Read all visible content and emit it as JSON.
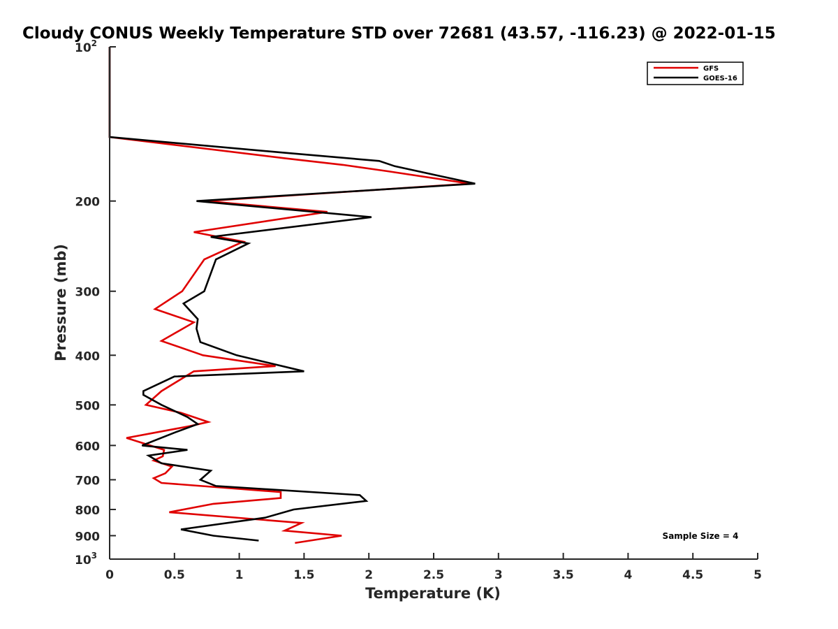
{
  "chart_data": {
    "type": "line",
    "title": "Cloudy CONUS Weekly Temperature STD over 72681 (43.57, -116.23) @ 2022-01-15",
    "xlabel": "Temperature (K)",
    "ylabel": "Pressure (mb)",
    "xlim": [
      0,
      5
    ],
    "ylim": [
      100,
      1000
    ],
    "y_scale": "log",
    "y_reversed": true,
    "x_ticks": [
      "0",
      "0.5",
      "1",
      "1.5",
      "2",
      "2.5",
      "3",
      "3.5",
      "4",
      "4.5",
      "5"
    ],
    "y_ticks": [
      {
        "value": 100,
        "base": "10",
        "exp": "2"
      },
      {
        "value": 200,
        "label": "200"
      },
      {
        "value": 300,
        "label": "300"
      },
      {
        "value": 400,
        "label": "400"
      },
      {
        "value": 500,
        "label": "500"
      },
      {
        "value": 600,
        "label": "600"
      },
      {
        "value": 700,
        "label": "700"
      },
      {
        "value": 800,
        "label": "800"
      },
      {
        "value": 900,
        "label": "900"
      },
      {
        "value": 1000,
        "base": "10",
        "exp": "3"
      }
    ],
    "grid": false,
    "legend_position": "top-right",
    "annotation": "Sample Size = 4",
    "series": [
      {
        "name": "GFS",
        "color": "#e00000",
        "points": [
          [
            0,
            100
          ],
          [
            0,
            150
          ],
          [
            1.35,
            165
          ],
          [
            1.8,
            170
          ],
          [
            2.15,
            175
          ],
          [
            2.78,
            185
          ],
          [
            0.74,
            200
          ],
          [
            1.68,
            210
          ],
          [
            0.65,
            230
          ],
          [
            1.03,
            240
          ],
          [
            0.73,
            260
          ],
          [
            0.56,
            300
          ],
          [
            0.35,
            325
          ],
          [
            0.65,
            345
          ],
          [
            0.4,
            375
          ],
          [
            0.72,
            400
          ],
          [
            1.28,
            420
          ],
          [
            0.65,
            430
          ],
          [
            0.4,
            470
          ],
          [
            0.28,
            500
          ],
          [
            0.55,
            518
          ],
          [
            0.76,
            540
          ],
          [
            0.62,
            550
          ],
          [
            0.13,
            580
          ],
          [
            0.42,
            612
          ],
          [
            0.41,
            630
          ],
          [
            0.34,
            642
          ],
          [
            0.48,
            660
          ],
          [
            0.43,
            680
          ],
          [
            0.34,
            695
          ],
          [
            0.4,
            710
          ],
          [
            1.32,
            740
          ],
          [
            1.32,
            760
          ],
          [
            0.8,
            780
          ],
          [
            0.46,
            810
          ],
          [
            1.48,
            850
          ],
          [
            1.35,
            880
          ],
          [
            1.79,
            900
          ],
          [
            1.43,
            930
          ]
        ]
      },
      {
        "name": "GOES-16",
        "color": "#000000",
        "points": [
          [
            0,
            100
          ],
          [
            0,
            150
          ],
          [
            1.35,
            161
          ],
          [
            2.08,
            167
          ],
          [
            2.2,
            171
          ],
          [
            2.82,
            185
          ],
          [
            0.67,
            200
          ],
          [
            2.02,
            215
          ],
          [
            0.78,
            235
          ],
          [
            1.07,
            242
          ],
          [
            0.82,
            260
          ],
          [
            0.73,
            300
          ],
          [
            0.57,
            317
          ],
          [
            0.68,
            340
          ],
          [
            0.67,
            355
          ],
          [
            0.7,
            377
          ],
          [
            0.98,
            400
          ],
          [
            1.5,
            430
          ],
          [
            0.5,
            440
          ],
          [
            0.26,
            470
          ],
          [
            0.26,
            478
          ],
          [
            0.4,
            500
          ],
          [
            0.6,
            528
          ],
          [
            0.68,
            545
          ],
          [
            0.51,
            565
          ],
          [
            0.25,
            600
          ],
          [
            0.6,
            612
          ],
          [
            0.3,
            628
          ],
          [
            0.4,
            650
          ],
          [
            0.78,
            672
          ],
          [
            0.7,
            700
          ],
          [
            0.82,
            720
          ],
          [
            1.93,
            750
          ],
          [
            1.98,
            770
          ],
          [
            1.42,
            800
          ],
          [
            1.2,
            830
          ],
          [
            0.55,
            875
          ],
          [
            0.8,
            900
          ],
          [
            1.15,
            920
          ]
        ]
      }
    ]
  }
}
